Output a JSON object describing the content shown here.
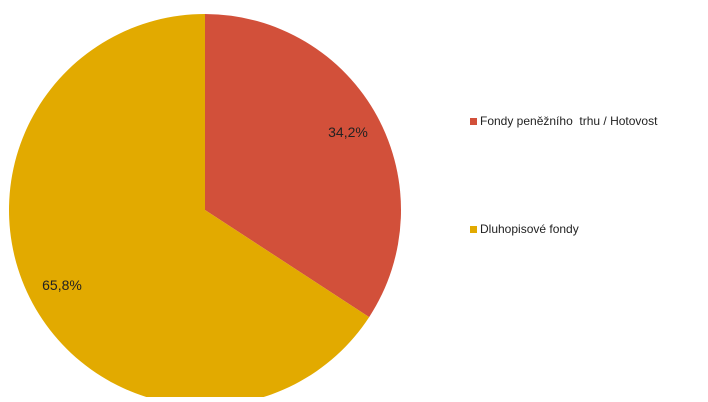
{
  "chart_data": {
    "type": "pie",
    "title": "",
    "series": [
      {
        "name": "",
        "slices": [
          {
            "label": "Fondy peněžního  trhu / Hotovost",
            "value": 34.2,
            "value_label": "34,2%",
            "color": "#d2503a"
          },
          {
            "label": "Dluhopisové fondy",
            "value": 65.8,
            "value_label": "65,8%",
            "color": "#e2aa00"
          }
        ]
      }
    ],
    "legend": "right",
    "start_angle": "12 o'clock",
    "direction": "clockwise"
  }
}
